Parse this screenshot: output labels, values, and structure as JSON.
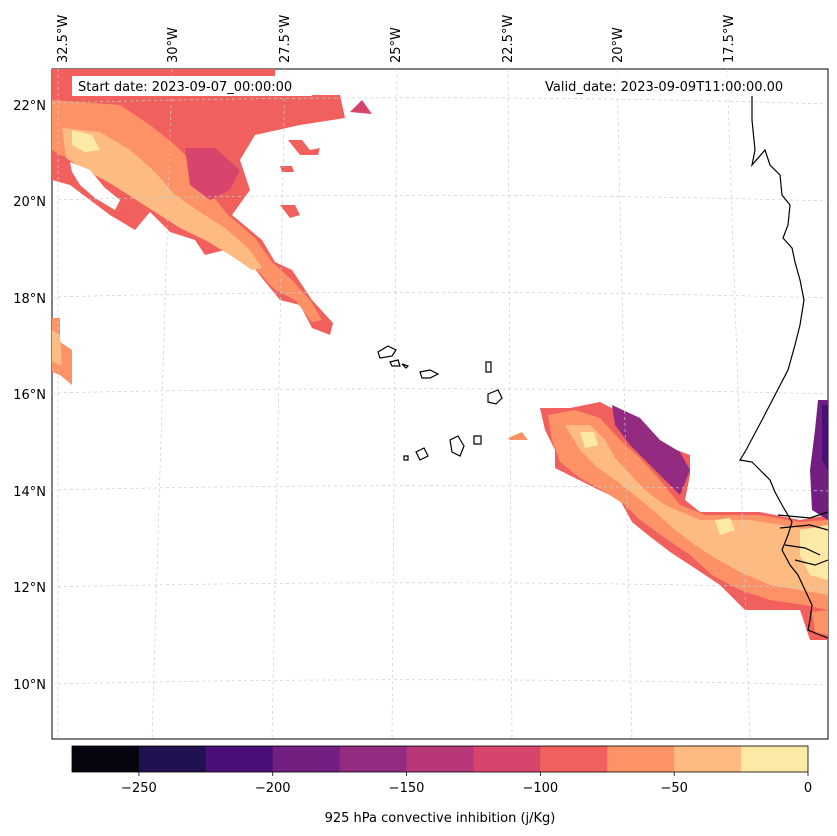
{
  "annotations": {
    "start_date": "Start date: 2023-09-07_00:00:00",
    "valid_date": "Valid_date: 2023-09-09T11:00:00.00"
  },
  "longitude_labels": [
    "32.5°W",
    "30°W",
    "27.5°W",
    "25°W",
    "22.5°W",
    "20°W",
    "17.5°W"
  ],
  "latitude_labels": [
    "22°N",
    "20°N",
    "18°N",
    "16°N",
    "14°N",
    "12°N",
    "10°N"
  ],
  "colorbar": {
    "title": "925 hPa convective inhibition (j/Kg)",
    "tick_labels": [
      "−250",
      "−200",
      "−150",
      "−100",
      "−50",
      "0"
    ],
    "ticks": [
      -250,
      -200,
      -150,
      -100,
      -50,
      0
    ],
    "range": [
      -275,
      0
    ],
    "levels": [
      -275,
      -250,
      -225,
      -200,
      -175,
      -150,
      -125,
      -100,
      -75,
      -50,
      -25,
      0
    ],
    "colors": [
      "#05040f",
      "#221150",
      "#4c0f78",
      "#721f81",
      "#932b80",
      "#b73779",
      "#d8456c",
      "#f1605d",
      "#fd9266",
      "#febb81",
      "#fde9a6"
    ]
  },
  "palette": {
    "coastline": "#000000",
    "gridline": "#cccccc"
  }
}
